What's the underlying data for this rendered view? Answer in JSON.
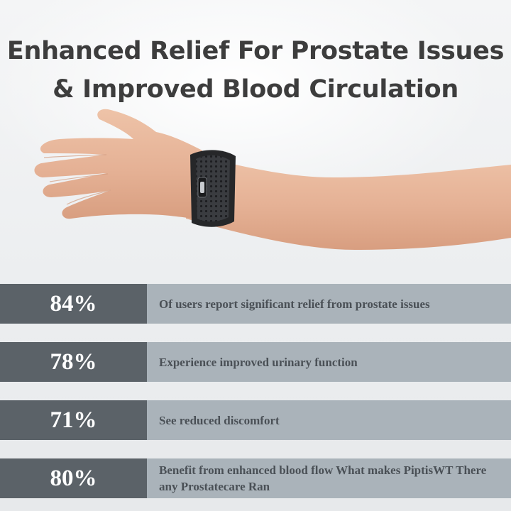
{
  "headline": {
    "line1": "Enhanced Relief For Prostate Issues",
    "line2": "& Improved Blood Circulation"
  },
  "image": {
    "subject": "arm-wearing-wristband",
    "colors": {
      "band": "#2e3033",
      "skin": "#e8b89c"
    }
  },
  "stats": [
    {
      "value": "84%",
      "text": "Of users report significant relief from prostate issues"
    },
    {
      "value": "78%",
      "text": "Experience improved urinary function"
    },
    {
      "value": "71%",
      "text": "See reduced discomfort"
    },
    {
      "value": "80%",
      "text": "Benefit from enhanced blood flow What makes PiptisWT There any Prostatecare Ran"
    }
  ],
  "colors": {
    "value_bg": "#5b6268",
    "text_bg": "#aab3ba",
    "text_color": "#4a5056",
    "headline_color": "#3d3d3d"
  }
}
